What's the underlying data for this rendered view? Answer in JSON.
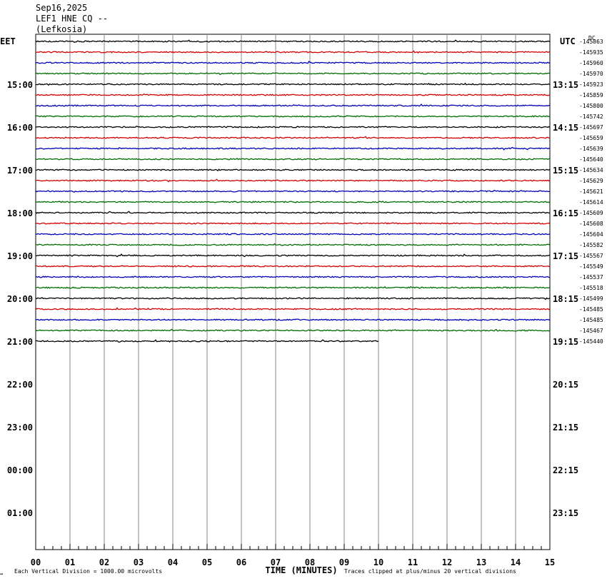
{
  "header": {
    "date": "Sep16,2025",
    "station": "LEF1 HNE CQ --",
    "location": "(Lefkosia)"
  },
  "left_axis_label": "EET",
  "right_axis_label": "UTC",
  "dc_label": "DC",
  "footer": {
    "left_glyph": "↔",
    "scale_note": "Each Vertical Division = 1000.00 microvolts",
    "x_title": "TIME (MINUTES)",
    "clip_note": "Traces clipped at plus/minus 20 vertical divisions"
  },
  "chart_data": {
    "type": "line",
    "x_label": "TIME (MINUTES)",
    "x_range": [
      0,
      15
    ],
    "x_ticks": [
      "00",
      "01",
      "02",
      "03",
      "04",
      "05",
      "06",
      "07",
      "08",
      "09",
      "10",
      "11",
      "12",
      "13",
      "14",
      "15"
    ],
    "colors": [
      "#000000",
      "#d40000",
      "#0000b4",
      "#006e00"
    ],
    "left_time_labels": [
      "15:00",
      "16:00",
      "17:00",
      "18:00",
      "19:00",
      "20:00",
      "21:00",
      "22:00",
      "23:00",
      "00:00",
      "01:00"
    ],
    "right_time_labels": [
      "13:15",
      "14:15",
      "15:15",
      "16:15",
      "17:15",
      "18:15",
      "19:15",
      "20:15",
      "21:15",
      "22:15",
      "23:15"
    ],
    "dc_offsets": [
      -145863,
      -145935,
      -145960,
      -145970,
      -145923,
      -145859,
      -145800,
      -145742,
      -145697,
      -145659,
      -145639,
      -145640,
      -145634,
      -145629,
      -145621,
      -145614,
      -145609,
      -145608,
      -145604,
      -145582,
      -145567,
      -145549,
      -145537,
      -145518,
      -145499,
      -145485,
      -145485,
      -145467,
      -145440
    ],
    "last_trace_end_minute": 10
  }
}
